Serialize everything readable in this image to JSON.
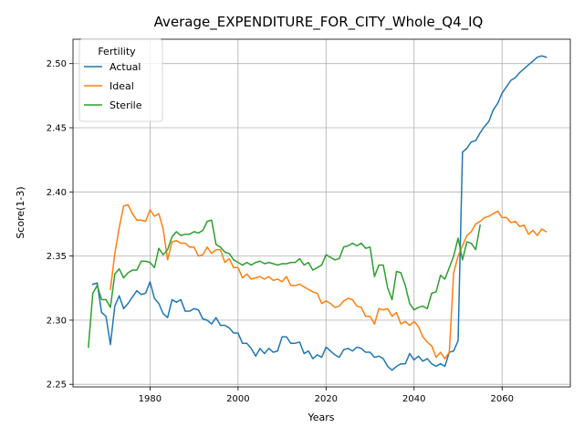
{
  "chart_data": {
    "type": "line",
    "title": "Average_EXPENDITURE_FOR_CITY_Whole_Q4_IQ",
    "xlabel": "Years",
    "ylabel": "Score(1-3)",
    "xlim": [
      1962.5,
      2075.5
    ],
    "ylim": [
      2.248,
      2.519
    ],
    "xticks": [
      1980,
      2000,
      2020,
      2040,
      2060
    ],
    "yticks": [
      2.25,
      2.3,
      2.35,
      2.4,
      2.45,
      2.5
    ],
    "ytick_labels": [
      "2.25",
      "2.30",
      "2.35",
      "2.40",
      "2.45",
      "2.50"
    ],
    "grid": true,
    "legend": {
      "title": "Fertility",
      "position": "top-left"
    },
    "series": [
      {
        "name": "Actual",
        "color": "#1f77b4",
        "x": [
          1967,
          1968,
          1969,
          1970,
          1971,
          1972,
          1973,
          1974,
          1975,
          1976,
          1977,
          1978,
          1979,
          1980,
          1981,
          1982,
          1983,
          1984,
          1985,
          1986,
          1987,
          1988,
          1989,
          1990,
          1991,
          1992,
          1993,
          1994,
          1995,
          1996,
          1997,
          1998,
          1999,
          2000,
          2001,
          2002,
          2003,
          2004,
          2005,
          2006,
          2007,
          2008,
          2009,
          2010,
          2011,
          2012,
          2013,
          2014,
          2015,
          2016,
          2017,
          2018,
          2019,
          2020,
          2021,
          2022,
          2023,
          2024,
          2025,
          2026,
          2027,
          2028,
          2029,
          2030,
          2031,
          2032,
          2033,
          2034,
          2035,
          2036,
          2037,
          2038,
          2039,
          2040,
          2041,
          2042,
          2043,
          2044,
          2045,
          2046,
          2047,
          2048,
          2049,
          2050,
          2051,
          2052,
          2053,
          2054,
          2055,
          2056,
          2057,
          2058,
          2059,
          2060,
          2061,
          2062,
          2063,
          2064,
          2065,
          2066,
          2067,
          2068,
          2069,
          2070
        ],
        "y": [
          2.328,
          2.329,
          2.306,
          2.303,
          2.281,
          2.311,
          2.319,
          2.309,
          2.313,
          2.318,
          2.323,
          2.32,
          2.321,
          2.33,
          2.317,
          2.313,
          2.305,
          2.302,
          2.316,
          2.314,
          2.316,
          2.307,
          2.307,
          2.309,
          2.308,
          2.301,
          2.3,
          2.297,
          2.302,
          2.296,
          2.296,
          2.294,
          2.29,
          2.29,
          2.282,
          2.282,
          2.278,
          2.272,
          2.278,
          2.274,
          2.278,
          2.275,
          2.276,
          2.287,
          2.287,
          2.282,
          2.282,
          2.283,
          2.274,
          2.276,
          2.27,
          2.273,
          2.271,
          2.279,
          2.276,
          2.273,
          2.271,
          2.277,
          2.278,
          2.276,
          2.279,
          2.278,
          2.275,
          2.275,
          2.271,
          2.272,
          2.27,
          2.264,
          2.261,
          2.264,
          2.266,
          2.266,
          2.274,
          2.269,
          2.272,
          2.268,
          2.27,
          2.266,
          2.264,
          2.266,
          2.264,
          2.275,
          2.276,
          2.284,
          2.431,
          2.434,
          2.439,
          2.44,
          2.446,
          2.451,
          2.455,
          2.464,
          2.469,
          2.477,
          2.482,
          2.487,
          2.489,
          2.493,
          2.496,
          2.499,
          2.502,
          2.505,
          2.506,
          2.505
        ]
      },
      {
        "name": "Ideal",
        "color": "#ff7f0e",
        "x": [
          1971,
          1972,
          1973,
          1974,
          1975,
          1976,
          1977,
          1978,
          1979,
          1980,
          1981,
          1982,
          1983,
          1984,
          1985,
          1986,
          1987,
          1988,
          1989,
          1990,
          1991,
          1992,
          1993,
          1994,
          1995,
          1996,
          1997,
          1998,
          1999,
          2000,
          2001,
          2002,
          2003,
          2004,
          2005,
          2006,
          2007,
          2008,
          2009,
          2010,
          2011,
          2012,
          2013,
          2014,
          2015,
          2016,
          2017,
          2018,
          2019,
          2020,
          2021,
          2022,
          2023,
          2024,
          2025,
          2026,
          2027,
          2028,
          2029,
          2030,
          2031,
          2032,
          2033,
          2034,
          2035,
          2036,
          2037,
          2038,
          2039,
          2040,
          2041,
          2042,
          2043,
          2044,
          2045,
          2046,
          2047,
          2048,
          2049,
          2050,
          2051,
          2052,
          2053,
          2054,
          2055,
          2056,
          2057,
          2058,
          2059,
          2060,
          2061,
          2062,
          2063,
          2064,
          2065,
          2066,
          2067,
          2068,
          2069,
          2070
        ],
        "y": [
          2.324,
          2.352,
          2.372,
          2.389,
          2.39,
          2.383,
          2.378,
          2.378,
          2.377,
          2.386,
          2.381,
          2.383,
          2.371,
          2.347,
          2.361,
          2.362,
          2.36,
          2.36,
          2.357,
          2.357,
          2.35,
          2.351,
          2.357,
          2.352,
          2.355,
          2.355,
          2.345,
          2.348,
          2.341,
          2.341,
          2.333,
          2.336,
          2.332,
          2.333,
          2.334,
          2.332,
          2.334,
          2.331,
          2.332,
          2.33,
          2.334,
          2.327,
          2.327,
          2.328,
          2.326,
          2.324,
          2.322,
          2.321,
          2.313,
          2.315,
          2.313,
          2.31,
          2.311,
          2.315,
          2.317,
          2.316,
          2.311,
          2.31,
          2.303,
          2.303,
          2.297,
          2.309,
          2.308,
          2.309,
          2.303,
          2.306,
          2.297,
          2.299,
          2.296,
          2.299,
          2.295,
          2.287,
          2.283,
          2.28,
          2.271,
          2.275,
          2.27,
          2.275,
          2.337,
          2.35,
          2.358,
          2.366,
          2.369,
          2.375,
          2.377,
          2.38,
          2.381,
          2.383,
          2.385,
          2.38,
          2.38,
          2.376,
          2.377,
          2.373,
          2.374,
          2.367,
          2.37,
          2.366,
          2.371,
          2.369
        ]
      },
      {
        "name": "Sterile",
        "color": "#2ca02c",
        "x": [
          1966,
          1967,
          1968,
          1969,
          1970,
          1971,
          1972,
          1973,
          1974,
          1975,
          1976,
          1977,
          1978,
          1979,
          1980,
          1981,
          1982,
          1983,
          1984,
          1985,
          1986,
          1987,
          1988,
          1989,
          1990,
          1991,
          1992,
          1993,
          1994,
          1995,
          1996,
          1997,
          1998,
          1999,
          2000,
          2001,
          2002,
          2003,
          2004,
          2005,
          2006,
          2007,
          2008,
          2009,
          2010,
          2011,
          2012,
          2013,
          2014,
          2015,
          2016,
          2017,
          2018,
          2019,
          2020,
          2021,
          2022,
          2023,
          2024,
          2025,
          2026,
          2027,
          2028,
          2029,
          2030,
          2031,
          2032,
          2033,
          2034,
          2035,
          2036,
          2037,
          2038,
          2039,
          2040,
          2041,
          2042,
          2043,
          2044,
          2045,
          2046,
          2047,
          2048,
          2049,
          2050,
          2051,
          2052,
          2053,
          2054,
          2055
        ],
        "y": [
          2.279,
          2.321,
          2.327,
          2.316,
          2.316,
          2.31,
          2.336,
          2.34,
          2.333,
          2.337,
          2.339,
          2.339,
          2.346,
          2.346,
          2.345,
          2.341,
          2.356,
          2.351,
          2.355,
          2.365,
          2.369,
          2.366,
          2.367,
          2.367,
          2.369,
          2.368,
          2.37,
          2.377,
          2.378,
          2.359,
          2.357,
          2.353,
          2.352,
          2.347,
          2.345,
          2.343,
          2.345,
          2.343,
          2.345,
          2.346,
          2.344,
          2.345,
          2.344,
          2.343,
          2.344,
          2.344,
          2.345,
          2.345,
          2.348,
          2.343,
          2.345,
          2.339,
          2.341,
          2.343,
          2.351,
          2.349,
          2.347,
          2.348,
          2.357,
          2.358,
          2.36,
          2.358,
          2.36,
          2.356,
          2.357,
          2.334,
          2.343,
          2.343,
          2.325,
          2.316,
          2.338,
          2.337,
          2.327,
          2.313,
          2.308,
          2.31,
          2.311,
          2.309,
          2.321,
          2.322,
          2.335,
          2.332,
          2.341,
          2.35,
          2.364,
          2.347,
          2.361,
          2.36,
          2.355,
          2.374
        ]
      }
    ]
  }
}
